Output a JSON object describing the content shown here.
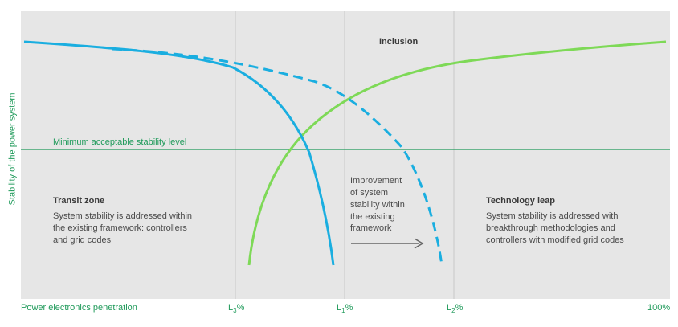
{
  "diagram": {
    "y_axis_label": "Stability of the power system",
    "x_axis_label": "Power electronics penetration",
    "x_ticks": {
      "l3": {
        "main": "L",
        "sub": "3",
        "suffix": "%"
      },
      "l1": {
        "main": "L",
        "sub": "1",
        "suffix": "%"
      },
      "l2": {
        "main": "L",
        "sub": "2",
        "suffix": "%"
      },
      "end": "100%"
    },
    "threshold_label": "Minimum acceptable stability level",
    "inclusion_label": "Inclusion",
    "transit_zone": {
      "title": "Transit zone",
      "lines": [
        "System stability is addressed within",
        "the existing framework: controllers",
        "and grid codes"
      ]
    },
    "improvement": {
      "lines": [
        "Improvement",
        "of system",
        "stability within",
        "the existing",
        "framework"
      ]
    },
    "technology_leap": {
      "title": "Technology leap",
      "lines": [
        "System stability is addressed  with",
        "breakthrough methodologies and",
        "controllers with modified grid codes"
      ]
    },
    "colors": {
      "background": "#e6e6e6",
      "blue": "#1aaee0",
      "green": "#7ed957",
      "threshold": "#1f9a5a",
      "axis_text": "#1f9a5a",
      "divider": "#c8c8c8",
      "arrow": "#666666"
    }
  }
}
